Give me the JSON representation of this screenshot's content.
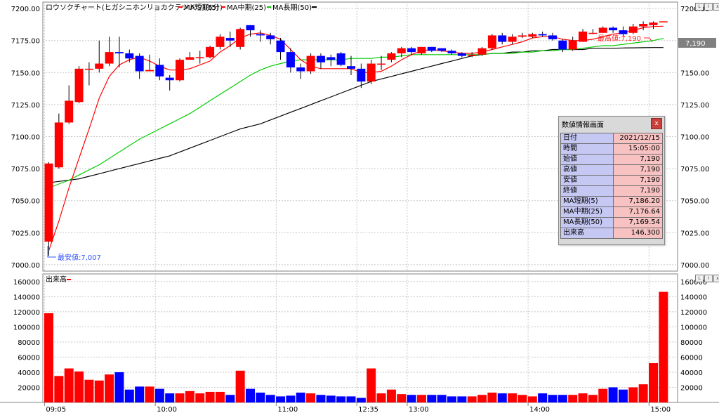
{
  "price_panel": {
    "title": "ロウソクチャート(ヒガシニホンリョカクテツドウ)(5分)",
    "legend": [
      {
        "label": "MA短期(5)",
        "color": "#ff0000"
      },
      {
        "label": "MA中期(25)",
        "color": "#ff0000"
      },
      {
        "label": "MA長期(50)",
        "color": "#00cc00"
      },
      {
        "label": "",
        "color": "#000000"
      }
    ],
    "max_annotation": "最高値:7,190",
    "min_annotation": "最安値:7,007",
    "last_price_tag": "7,190"
  },
  "volume_panel": {
    "title": "出来高"
  },
  "info_window": {
    "title": "数値情報画面",
    "close_label": "x",
    "rows": [
      {
        "key": "日付",
        "value": "2021/12/15"
      },
      {
        "key": "時間",
        "value": "15:05:00"
      },
      {
        "key": "始値",
        "value": "7,190"
      },
      {
        "key": "高値",
        "value": "7,190"
      },
      {
        "key": "安値",
        "value": "7,190"
      },
      {
        "key": "終値",
        "value": "7,190"
      },
      {
        "key": "MA短期(5)",
        "value": "7,186.20"
      },
      {
        "key": "MA中期(25)",
        "value": "7,176.64"
      },
      {
        "key": "MA長期(50)",
        "value": "7,169.54"
      },
      {
        "key": "出来高",
        "value": "146,300"
      }
    ]
  },
  "window_buttons": [
    "L",
    "I",
    "x"
  ],
  "colors": {
    "up": "#ff0000",
    "down": "#0000ff",
    "ma_short": "#ff0000",
    "ma_mid": "#00cc00",
    "ma_long": "#000000"
  },
  "chart_data": {
    "type": "candlestick",
    "price_axis": {
      "ylim": [
        6995,
        7205
      ],
      "ticks": [
        "7200.00",
        "7175.00",
        "7150.00",
        "7125.00",
        "7100.00",
        "7075.00",
        "7050.00",
        "7025.00",
        "7000.00"
      ]
    },
    "volume_axis": {
      "ylim": [
        0,
        170000
      ],
      "ticks": [
        "160000",
        "140000",
        "120000",
        "100000",
        "80000",
        "60000",
        "40000",
        "20000"
      ]
    },
    "time_labels": [
      {
        "label": "09:05",
        "bar": 0
      },
      {
        "label": "10:00",
        "bar": 11
      },
      {
        "label": "11:00",
        "bar": 23
      },
      {
        "label": "12:35",
        "bar": 31
      },
      {
        "label": "13:00",
        "bar": 36
      },
      {
        "label": "14:00",
        "bar": 48
      },
      {
        "label": "15:00",
        "bar": 60
      }
    ],
    "candles": [
      {
        "o": 7018,
        "h": 7080,
        "l": 7007,
        "c": 7079,
        "v": 118000
      },
      {
        "o": 7076,
        "h": 7118,
        "l": 7075,
        "c": 7111,
        "v": 35000
      },
      {
        "o": 7111,
        "h": 7140,
        "l": 7110,
        "c": 7128,
        "v": 45000
      },
      {
        "o": 7127,
        "h": 7155,
        "l": 7126,
        "c": 7153,
        "v": 41000
      },
      {
        "o": 7153,
        "h": 7158,
        "l": 7140,
        "c": 7153,
        "v": 30000
      },
      {
        "o": 7153,
        "h": 7175,
        "l": 7150,
        "c": 7157,
        "v": 29000
      },
      {
        "o": 7157,
        "h": 7178,
        "l": 7155,
        "c": 7166,
        "v": 37000
      },
      {
        "o": 7166,
        "h": 7178,
        "l": 7154,
        "c": 7165,
        "v": 40000
      },
      {
        "o": 7165,
        "h": 7168,
        "l": 7158,
        "c": 7161,
        "v": 17000
      },
      {
        "o": 7163,
        "h": 7165,
        "l": 7145,
        "c": 7151,
        "v": 21000
      },
      {
        "o": 7151,
        "h": 7164,
        "l": 7151,
        "c": 7152,
        "v": 21000
      },
      {
        "o": 7156,
        "h": 7161,
        "l": 7144,
        "c": 7147,
        "v": 18000
      },
      {
        "o": 7146,
        "h": 7148,
        "l": 7136,
        "c": 7144,
        "v": 12000
      },
      {
        "o": 7144,
        "h": 7161,
        "l": 7143,
        "c": 7160,
        "v": 12000
      },
      {
        "o": 7160,
        "h": 7166,
        "l": 7160,
        "c": 7162,
        "v": 15000
      },
      {
        "o": 7162,
        "h": 7167,
        "l": 7157,
        "c": 7162,
        "v": 12000
      },
      {
        "o": 7162,
        "h": 7171,
        "l": 7161,
        "c": 7170,
        "v": 14000
      },
      {
        "o": 7170,
        "h": 7180,
        "l": 7168,
        "c": 7178,
        "v": 14000
      },
      {
        "o": 7177,
        "h": 7182,
        "l": 7170,
        "c": 7175,
        "v": 10000
      },
      {
        "o": 7170,
        "h": 7185,
        "l": 7168,
        "c": 7184,
        "v": 42000
      },
      {
        "o": 7187,
        "h": 7187,
        "l": 7178,
        "c": 7183,
        "v": 18000
      },
      {
        "o": 7180,
        "h": 7183,
        "l": 7174,
        "c": 7179,
        "v": 13000
      },
      {
        "o": 7179,
        "h": 7181,
        "l": 7172,
        "c": 7176,
        "v": 10000
      },
      {
        "o": 7175,
        "h": 7177,
        "l": 7160,
        "c": 7166,
        "v": 8000
      },
      {
        "o": 7166,
        "h": 7169,
        "l": 7150,
        "c": 7154,
        "v": 9000
      },
      {
        "o": 7154,
        "h": 7157,
        "l": 7145,
        "c": 7151,
        "v": 13000
      },
      {
        "o": 7151,
        "h": 7165,
        "l": 7149,
        "c": 7163,
        "v": 12000
      },
      {
        "o": 7163,
        "h": 7165,
        "l": 7153,
        "c": 7158,
        "v": 10000
      },
      {
        "o": 7162,
        "h": 7164,
        "l": 7155,
        "c": 7160,
        "v": 9000
      },
      {
        "o": 7165,
        "h": 7166,
        "l": 7155,
        "c": 7156,
        "v": 8000
      },
      {
        "o": 7155,
        "h": 7163,
        "l": 7148,
        "c": 7153,
        "v": 8000
      },
      {
        "o": 7153,
        "h": 7157,
        "l": 7138,
        "c": 7143,
        "v": 6000
      },
      {
        "o": 7143,
        "h": 7160,
        "l": 7141,
        "c": 7157,
        "v": 45000
      },
      {
        "o": 7157,
        "h": 7163,
        "l": 7152,
        "c": 7157,
        "v": 12000
      },
      {
        "o": 7160,
        "h": 7166,
        "l": 7158,
        "c": 7165,
        "v": 17000
      },
      {
        "o": 7165,
        "h": 7170,
        "l": 7162,
        "c": 7169,
        "v": 11000
      },
      {
        "o": 7169,
        "h": 7170,
        "l": 7164,
        "c": 7166,
        "v": 10000
      },
      {
        "o": 7165,
        "h": 7170,
        "l": 7164,
        "c": 7170,
        "v": 10000
      },
      {
        "o": 7170,
        "h": 7170,
        "l": 7166,
        "c": 7167,
        "v": 10000
      },
      {
        "o": 7169,
        "h": 7169,
        "l": 7166,
        "c": 7167,
        "v": 10000
      },
      {
        "o": 7167,
        "h": 7168,
        "l": 7164,
        "c": 7165,
        "v": 8000
      },
      {
        "o": 7165,
        "h": 7166,
        "l": 7162,
        "c": 7163,
        "v": 8000
      },
      {
        "o": 7163,
        "h": 7166,
        "l": 7162,
        "c": 7164,
        "v": 8000
      },
      {
        "o": 7164,
        "h": 7170,
        "l": 7163,
        "c": 7169,
        "v": 10000
      },
      {
        "o": 7169,
        "h": 7180,
        "l": 7168,
        "c": 7179,
        "v": 13000
      },
      {
        "o": 7179,
        "h": 7181,
        "l": 7172,
        "c": 7174,
        "v": 12000
      },
      {
        "o": 7174,
        "h": 7180,
        "l": 7172,
        "c": 7178,
        "v": 12000
      },
      {
        "o": 7178,
        "h": 7181,
        "l": 7177,
        "c": 7179,
        "v": 10000
      },
      {
        "o": 7178,
        "h": 7181,
        "l": 7177,
        "c": 7180,
        "v": 8000
      },
      {
        "o": 7180,
        "h": 7182,
        "l": 7178,
        "c": 7179,
        "v": 12000
      },
      {
        "o": 7179,
        "h": 7181,
        "l": 7175,
        "c": 7176,
        "v": 10000
      },
      {
        "o": 7175,
        "h": 7176,
        "l": 7166,
        "c": 7168,
        "v": 10000
      },
      {
        "o": 7168,
        "h": 7178,
        "l": 7167,
        "c": 7175,
        "v": 10000
      },
      {
        "o": 7174,
        "h": 7184,
        "l": 7174,
        "c": 7182,
        "v": 12000
      },
      {
        "o": 7181,
        "h": 7184,
        "l": 7180,
        "c": 7181,
        "v": 10000
      },
      {
        "o": 7181,
        "h": 7186,
        "l": 7181,
        "c": 7185,
        "v": 18000
      },
      {
        "o": 7185,
        "h": 7186,
        "l": 7181,
        "c": 7183,
        "v": 20000
      },
      {
        "o": 7183,
        "h": 7186,
        "l": 7178,
        "c": 7180,
        "v": 17000
      },
      {
        "o": 7181,
        "h": 7188,
        "l": 7180,
        "c": 7186,
        "v": 20000
      },
      {
        "o": 7186,
        "h": 7190,
        "l": 7183,
        "c": 7188,
        "v": 24000
      },
      {
        "o": 7187,
        "h": 7190,
        "l": 7184,
        "c": 7189,
        "v": 52000
      },
      {
        "o": 7190,
        "h": 7190,
        "l": 7190,
        "c": 7190,
        "v": 146300
      }
    ],
    "ma_short": [
      7011,
      7034,
      7060,
      7083,
      7106,
      7130,
      7147,
      7156,
      7160,
      7162,
      7159,
      7155,
      7152,
      7152,
      7153,
      7156,
      7159,
      7166,
      7171,
      7177,
      7180,
      7181,
      7179,
      7176,
      7168,
      7160,
      7155,
      7153,
      7153,
      7153,
      7153,
      7150,
      7150,
      7151,
      7155,
      7160,
      7164,
      7167,
      7168,
      7167,
      7166,
      7165,
      7165,
      7166,
      7168,
      7170,
      7172,
      7174,
      7177,
      7178,
      7178,
      7176,
      7175,
      7175,
      7176,
      7178,
      7180,
      7181,
      7183,
      7185,
      7186,
      7186.2
    ],
    "ma_mid": [
      7060,
      7063,
      7066,
      7070,
      7074,
      7078,
      7083,
      7088,
      7093,
      7098,
      7102,
      7106,
      7110,
      7114,
      7118,
      7123,
      7128,
      7133,
      7138,
      7143,
      7148,
      7152,
      7155,
      7157,
      7159,
      7160,
      7160,
      7160,
      7160,
      7160,
      7161,
      7161,
      7161,
      7162,
      7162,
      7163,
      7164,
      7164,
      7164,
      7164,
      7164,
      7164,
      7164,
      7164,
      7165,
      7165,
      7165,
      7166,
      7166,
      7167,
      7167,
      7168,
      7168,
      7169,
      7170,
      7171,
      7171,
      7172,
      7173,
      7174,
      7175,
      7176.64
    ],
    "ma_long": [
      7064,
      7065,
      7066,
      7067,
      7069,
      7071,
      7073,
      7075,
      7077,
      7079,
      7081,
      7083,
      7085,
      7088,
      7091,
      7094,
      7097,
      7100,
      7103,
      7106,
      7108,
      7110,
      7113,
      7116,
      7119,
      7122,
      7125,
      7128,
      7131,
      7134,
      7137,
      7140,
      7143,
      7145,
      7147,
      7149,
      7151,
      7153,
      7155,
      7157,
      7159,
      7161,
      7163,
      7164,
      7165,
      7165,
      7166,
      7166,
      7167,
      7167,
      7168,
      7168,
      7168,
      7168,
      7169,
      7169,
      7169,
      7169.2,
      7169.3,
      7169.4,
      7169.5,
      7169.54
    ]
  }
}
